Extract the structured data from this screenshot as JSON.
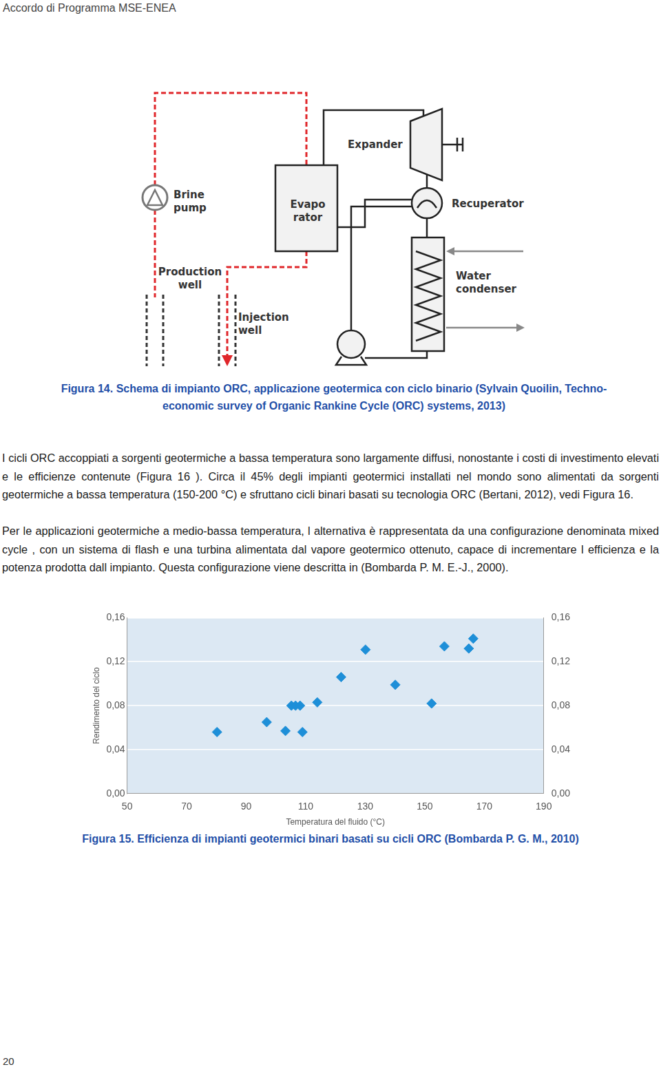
{
  "header": "Accordo di Programma MSE-ENEA",
  "figure14": {
    "labels": {
      "expander": [
        "Expander"
      ],
      "recuperator": [
        "Recuperator"
      ],
      "evaporator": [
        "Evapo",
        "rator"
      ],
      "brine_pump": [
        "Brine",
        "pump"
      ],
      "production_well": [
        "Production",
        "well"
      ],
      "injection_well": [
        "Injection",
        "well"
      ],
      "water_condenser": [
        "Water",
        "condenser"
      ]
    },
    "caption": "Figura 14. Schema di impianto ORC, applicazione geotermica con ciclo binario (Sylvain Quoilin, Techno-economic survey of Organic Rankine Cycle (ORC) systems, 2013)"
  },
  "paragraphs": [
    "I cicli ORC accoppiati a sorgenti geotermiche a bassa temperatura sono largamente diffusi, nonostante i costi di investimento elevati e le efficienze contenute (Figura 16 ). Circa il 45% degli impianti geotermici installati nel mondo sono alimentati da sorgenti geotermiche a bassa temperatura (150-200 °C) e sfruttano cicli binari basati su tecnologia ORC (Bertani, 2012), vedi Figura 16.",
    "Per le applicazioni geotermiche a medio-bassa temperatura, l alternativa è rappresentata da una configurazione denominata mixed cycle , con un sistema di flash e una turbina alimentata dal vapore geotermico ottenuto, capace di incrementare l efficienza e la potenza prodotta dall impianto. Questa configurazione viene descritta in (Bombarda P. M. E.-J., 2000)."
  ],
  "chart_data": {
    "type": "scatter",
    "xlabel": "Temperatura del fluido (°C)",
    "ylabel": "Rendimento del ciclo",
    "x": [
      80.2,
      96.9,
      103.2,
      105.2,
      106.6,
      108.1,
      108.9,
      113.9,
      121.9,
      130.1,
      140.1,
      152.3,
      156.6,
      164.8,
      166.3
    ],
    "values": [
      0.056,
      0.065,
      0.057,
      0.08,
      0.08,
      0.08,
      0.056,
      0.083,
      0.106,
      0.131,
      0.099,
      0.082,
      0.134,
      0.132,
      0.141
    ],
    "color": "#1e8fd8",
    "marker": "diamond",
    "grid": true,
    "xlim": [
      50,
      190
    ],
    "xticks": [
      50,
      70,
      90,
      110,
      130,
      150,
      170,
      190
    ],
    "ylim": [
      0,
      0.16
    ],
    "yticks": [
      {
        "value": 0,
        "label": "0,00"
      },
      {
        "value": 0.04,
        "label": "0,04"
      },
      {
        "value": 0.08,
        "label": "0,08"
      },
      {
        "value": 0.12,
        "label": "0,12"
      },
      {
        "value": 0.16,
        "label": "0,16"
      }
    ],
    "y2lim": [
      0,
      0.16
    ],
    "y2ticks": [
      {
        "value": 0,
        "label": "0,00"
      },
      {
        "value": 0.04,
        "label": "0,04"
      },
      {
        "value": 0.08,
        "label": "0,08"
      },
      {
        "value": 0.12,
        "label": "0,12"
      },
      {
        "value": 0.16,
        "label": "0,16"
      }
    ]
  },
  "figure15": {
    "caption": "Figura 15. Efficienza di impianti geotermici binari basati su cicli ORC (Bombarda P. G. M., 2010)"
  },
  "page_number": "20"
}
